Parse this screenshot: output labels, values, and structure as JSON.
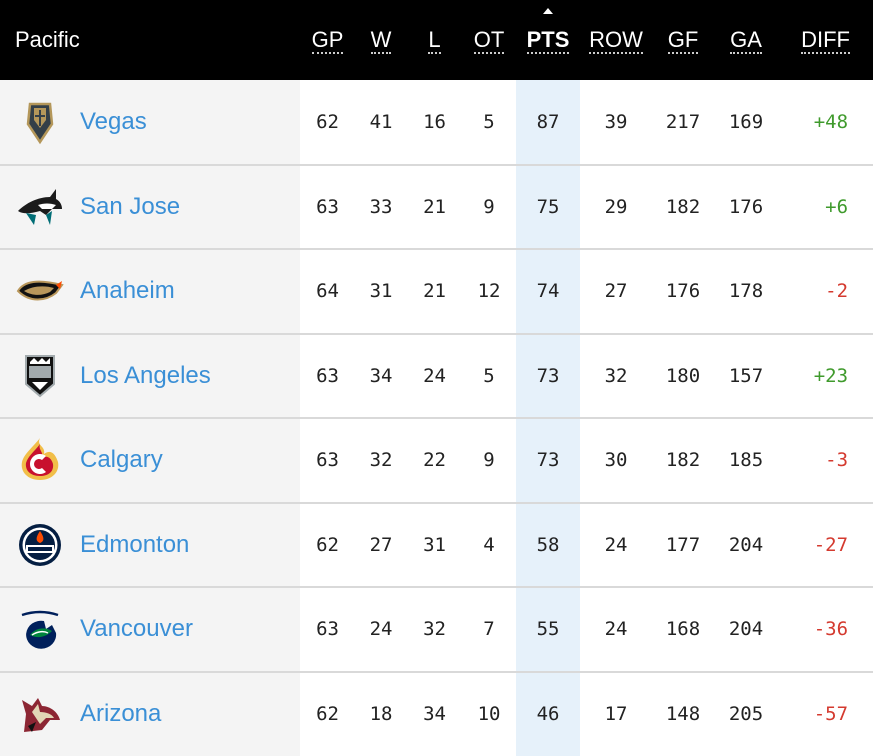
{
  "division": "Pacific",
  "columns": {
    "gp": "GP",
    "w": "W",
    "l": "L",
    "ot": "OT",
    "pts": "PTS",
    "row": "ROW",
    "gf": "GF",
    "ga": "GA",
    "diff": "DIFF"
  },
  "sorted_by": "PTS",
  "colors": {
    "header_bg": "#000000",
    "team_link": "#3a8fd6",
    "positive_diff": "#3f9a2c",
    "negative_diff": "#d43a2f",
    "sorted_column_bg": "#e6f1fa"
  },
  "teams": [
    {
      "name": "Vegas",
      "logo": "vegas-golden-knights-logo-icon",
      "gp": "62",
      "w": "41",
      "l": "16",
      "ot": "5",
      "pts": "87",
      "row": "39",
      "gf": "217",
      "ga": "169",
      "diff": "+48"
    },
    {
      "name": "San Jose",
      "logo": "san-jose-sharks-logo-icon",
      "gp": "63",
      "w": "33",
      "l": "21",
      "ot": "9",
      "pts": "75",
      "row": "29",
      "gf": "182",
      "ga": "176",
      "diff": "+6"
    },
    {
      "name": "Anaheim",
      "logo": "anaheim-ducks-logo-icon",
      "gp": "64",
      "w": "31",
      "l": "21",
      "ot": "12",
      "pts": "74",
      "row": "27",
      "gf": "176",
      "ga": "178",
      "diff": "-2"
    },
    {
      "name": "Los Angeles",
      "logo": "los-angeles-kings-logo-icon",
      "gp": "63",
      "w": "34",
      "l": "24",
      "ot": "5",
      "pts": "73",
      "row": "32",
      "gf": "180",
      "ga": "157",
      "diff": "+23"
    },
    {
      "name": "Calgary",
      "logo": "calgary-flames-logo-icon",
      "gp": "63",
      "w": "32",
      "l": "22",
      "ot": "9",
      "pts": "73",
      "row": "30",
      "gf": "182",
      "ga": "185",
      "diff": "-3"
    },
    {
      "name": "Edmonton",
      "logo": "edmonton-oilers-logo-icon",
      "gp": "62",
      "w": "27",
      "l": "31",
      "ot": "4",
      "pts": "58",
      "row": "24",
      "gf": "177",
      "ga": "204",
      "diff": "-27"
    },
    {
      "name": "Vancouver",
      "logo": "vancouver-canucks-logo-icon",
      "gp": "63",
      "w": "24",
      "l": "32",
      "ot": "7",
      "pts": "55",
      "row": "24",
      "gf": "168",
      "ga": "204",
      "diff": "-36"
    },
    {
      "name": "Arizona",
      "logo": "arizona-coyotes-logo-icon",
      "gp": "62",
      "w": "18",
      "l": "34",
      "ot": "10",
      "pts": "46",
      "row": "17",
      "gf": "148",
      "ga": "205",
      "diff": "-57"
    }
  ]
}
